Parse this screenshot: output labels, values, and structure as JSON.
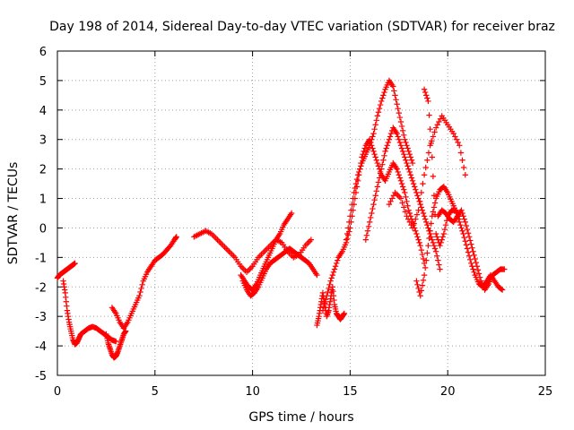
{
  "chart_data": {
    "type": "scatter",
    "title": "Day 198 of 2014, Sidereal Day-to-day VTEC variation (SDTVAR) for receiver braz",
    "xlabel": "GPS time / hours",
    "ylabel": "SDTVAR / TECUs",
    "xlim": [
      0,
      25
    ],
    "ylim": [
      -5,
      6
    ],
    "xticks": [
      0,
      5,
      10,
      15,
      20,
      25
    ],
    "yticks": [
      -5,
      -4,
      -3,
      -2,
      -1,
      0,
      1,
      2,
      3,
      4,
      5,
      6
    ],
    "grid": true,
    "marker": "+",
    "color": "#ff0000",
    "series": [
      {
        "name": "s1",
        "x": [
          0.0,
          0.1,
          0.2,
          0.3,
          0.4,
          0.5,
          0.6,
          0.7,
          0.8,
          0.9
        ],
        "y": [
          -1.7,
          -1.6,
          -1.55,
          -1.5,
          -1.45,
          -1.4,
          -1.35,
          -1.3,
          -1.25,
          -1.2
        ]
      },
      {
        "name": "s2",
        "x": [
          0.3,
          0.4,
          0.5,
          0.6,
          0.7,
          0.8,
          0.9,
          1.0,
          1.1,
          1.2,
          1.4,
          1.6,
          1.8,
          2.0,
          2.2,
          2.4,
          2.6,
          2.8,
          3.0
        ],
        "y": [
          -1.8,
          -2.2,
          -2.8,
          -3.2,
          -3.5,
          -3.8,
          -3.95,
          -3.9,
          -3.75,
          -3.6,
          -3.5,
          -3.4,
          -3.35,
          -3.4,
          -3.5,
          -3.6,
          -3.7,
          -3.8,
          -3.85
        ]
      },
      {
        "name": "s3",
        "x": [
          2.5,
          2.6,
          2.7,
          2.8,
          2.9,
          3.0,
          3.1,
          3.2,
          3.3,
          3.4,
          3.5
        ],
        "y": [
          -3.6,
          -3.9,
          -4.1,
          -4.3,
          -4.4,
          -4.35,
          -4.2,
          -4.0,
          -3.8,
          -3.6,
          -3.5
        ]
      },
      {
        "name": "s4",
        "x": [
          2.8,
          3.0,
          3.2,
          3.4,
          3.6,
          3.8,
          4.0,
          4.2,
          4.4,
          4.6,
          4.8,
          5.0,
          5.2,
          5.4,
          5.6,
          5.8,
          6.0,
          6.1
        ],
        "y": [
          -2.7,
          -2.9,
          -3.2,
          -3.4,
          -3.2,
          -2.9,
          -2.6,
          -2.3,
          -1.8,
          -1.5,
          -1.3,
          -1.1,
          -1.0,
          -0.9,
          -0.75,
          -0.6,
          -0.4,
          -0.3
        ]
      },
      {
        "name": "s5",
        "x": [
          7.0,
          7.3,
          7.6,
          7.9,
          8.2,
          8.5,
          8.8,
          9.1,
          9.4,
          9.7,
          10.0,
          10.3,
          10.6,
          10.9,
          11.2,
          11.5,
          11.8,
          12.1,
          12.4,
          12.7,
          13.0
        ],
        "y": [
          -0.3,
          -0.2,
          -0.1,
          -0.2,
          -0.4,
          -0.6,
          -0.8,
          -1.0,
          -1.3,
          -1.5,
          -1.3,
          -1.0,
          -0.8,
          -0.6,
          -0.4,
          -0.5,
          -0.8,
          -1.0,
          -0.9,
          -0.6,
          -0.4
        ]
      },
      {
        "name": "s6",
        "x": [
          9.4,
          9.6,
          9.8,
          10.0,
          10.2,
          10.4,
          10.6,
          10.8,
          11.0,
          11.2,
          11.4,
          11.6,
          11.8,
          12.0
        ],
        "y": [
          -1.6,
          -1.8,
          -2.0,
          -2.1,
          -1.9,
          -1.6,
          -1.3,
          -1.0,
          -0.7,
          -0.4,
          -0.2,
          0.1,
          0.3,
          0.5
        ]
      },
      {
        "name": "s7",
        "x": [
          9.5,
          9.7,
          9.9,
          10.1,
          10.3,
          10.5,
          10.7,
          10.9,
          11.1,
          11.3,
          11.5,
          11.7,
          11.9,
          12.1,
          12.3,
          12.5,
          12.7,
          12.9,
          13.1,
          13.3
        ],
        "y": [
          -1.8,
          -2.1,
          -2.3,
          -2.2,
          -2.0,
          -1.7,
          -1.4,
          -1.2,
          -1.1,
          -1.0,
          -0.9,
          -0.8,
          -0.7,
          -0.8,
          -0.9,
          -1.0,
          -1.1,
          -1.2,
          -1.4,
          -1.6
        ]
      },
      {
        "name": "s8",
        "x": [
          13.3,
          13.4,
          13.5,
          13.6,
          13.7,
          13.8,
          13.9,
          14.0,
          14.1,
          14.2,
          14.3,
          14.4,
          14.5,
          14.6,
          14.7
        ],
        "y": [
          -3.3,
          -3.0,
          -2.6,
          -2.2,
          -2.6,
          -3.0,
          -2.8,
          -2.4,
          -2.0,
          -2.6,
          -2.9,
          -3.0,
          -3.1,
          -3.0,
          -2.9
        ]
      },
      {
        "name": "s9",
        "x": [
          13.6,
          13.8,
          14.0,
          14.2,
          14.4,
          14.6,
          14.8,
          15.0,
          15.2,
          15.4,
          15.6,
          15.8,
          16.0,
          16.2,
          16.4,
          16.6,
          16.8,
          17.0,
          17.2,
          17.4,
          17.6,
          17.8,
          18.0,
          18.2,
          18.4,
          18.6,
          18.8
        ],
        "y": [
          -2.8,
          -2.3,
          -1.8,
          -1.4,
          -1.0,
          -0.8,
          -0.5,
          0.0,
          0.8,
          1.6,
          2.4,
          2.8,
          3.0,
          2.6,
          2.2,
          1.8,
          1.6,
          1.9,
          2.2,
          2.0,
          1.6,
          1.2,
          0.6,
          0.2,
          -0.2,
          -0.6,
          -1.2
        ]
      },
      {
        "name": "s10",
        "x": [
          14.8,
          15.0,
          15.2,
          15.4,
          15.6,
          15.8,
          16.0,
          16.2,
          16.4,
          16.6,
          16.8,
          17.0,
          17.2,
          17.4,
          17.6,
          17.8,
          18.0,
          18.2
        ],
        "y": [
          -0.4,
          0.4,
          1.2,
          1.8,
          2.2,
          2.5,
          2.8,
          3.2,
          3.8,
          4.3,
          4.7,
          5.0,
          4.8,
          4.2,
          3.6,
          3.0,
          2.6,
          2.2
        ]
      },
      {
        "name": "s11",
        "x": [
          15.8,
          16.0,
          16.2,
          16.4,
          16.6,
          16.8,
          17.0,
          17.2,
          17.4,
          17.6,
          17.8,
          18.0,
          18.2,
          18.4,
          18.6,
          18.8,
          19.0,
          19.2,
          19.4,
          19.6
        ],
        "y": [
          -0.4,
          0.2,
          0.8,
          1.4,
          2.0,
          2.6,
          3.0,
          3.4,
          3.2,
          2.8,
          2.4,
          2.0,
          1.6,
          1.2,
          0.8,
          0.4,
          0.0,
          -0.4,
          -0.8,
          -1.4
        ]
      },
      {
        "name": "s12",
        "x": [
          17.0,
          17.3,
          17.6,
          17.9,
          18.2,
          18.5,
          18.8,
          19.1,
          19.4,
          19.7,
          20.0,
          20.3,
          20.6,
          20.9
        ],
        "y": [
          0.8,
          1.2,
          1.0,
          0.4,
          0.0,
          0.6,
          1.8,
          2.8,
          3.4,
          3.8,
          3.5,
          3.2,
          2.8,
          1.8
        ]
      },
      {
        "name": "s13",
        "x": [
          18.4,
          18.6,
          18.8,
          19.0,
          19.2,
          19.4,
          19.6,
          19.8,
          20.0,
          20.2,
          20.4,
          20.6
        ],
        "y": [
          -1.8,
          -2.3,
          -1.6,
          -0.6,
          0.4,
          1.0,
          1.3,
          1.4,
          1.2,
          0.9,
          0.6,
          0.4
        ]
      },
      {
        "name": "s14",
        "x": [
          18.8,
          19.0,
          19.2,
          19.4,
          19.6,
          19.8,
          20.0,
          20.2,
          20.4,
          20.6,
          20.8,
          21.0,
          21.2,
          21.4,
          21.6,
          21.8,
          22.0,
          22.2,
          22.4,
          22.6,
          22.8
        ],
        "y": [
          4.7,
          4.3,
          2.4,
          -0.2,
          -0.6,
          -0.2,
          0.4,
          0.6,
          0.6,
          0.2,
          -0.2,
          -0.7,
          -1.2,
          -1.6,
          -1.9,
          -2.0,
          -1.8,
          -1.6,
          -1.8,
          -2.0,
          -2.1
        ]
      },
      {
        "name": "s15",
        "x": [
          19.5,
          19.7,
          19.9,
          20.1,
          20.3,
          20.5,
          20.7,
          20.9,
          21.1,
          21.3,
          21.5,
          21.7,
          21.9,
          22.1,
          22.3,
          22.5,
          22.7,
          22.9
        ],
        "y": [
          0.4,
          0.6,
          0.5,
          0.3,
          0.2,
          0.4,
          0.6,
          0.2,
          -0.3,
          -0.8,
          -1.3,
          -1.8,
          -2.1,
          -1.9,
          -1.6,
          -1.5,
          -1.4,
          -1.4
        ]
      }
    ]
  }
}
